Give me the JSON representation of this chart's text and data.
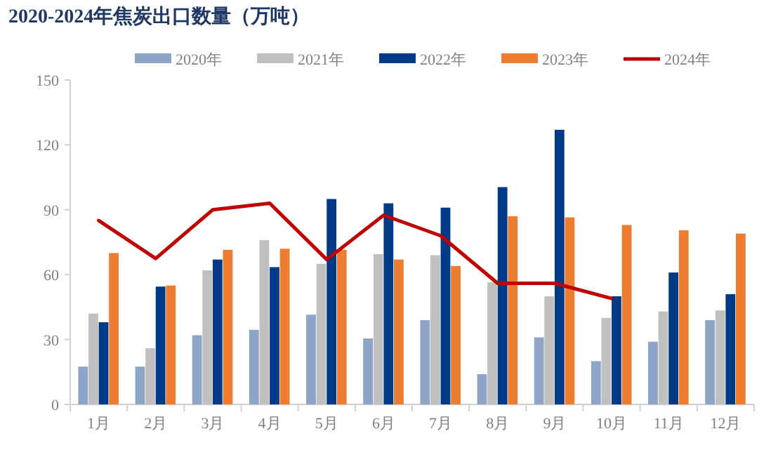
{
  "chart_data": {
    "type": "bar",
    "title": "2020-2024年焦炭出口数量（万吨）",
    "categories": [
      "1月",
      "2月",
      "3月",
      "4月",
      "5月",
      "6月",
      "7月",
      "8月",
      "9月",
      "10月",
      "11月",
      "12月"
    ],
    "series": [
      {
        "name": "2020年",
        "color": "#8ea5c8",
        "values": [
          17.5,
          17.5,
          32,
          34.5,
          41.5,
          30.5,
          39,
          14,
          31,
          20,
          29,
          39
        ]
      },
      {
        "name": "2021年",
        "color": "#c0c0c0",
        "values": [
          42,
          26,
          62,
          76,
          65,
          69.5,
          69,
          56.5,
          50,
          40,
          43,
          43.5
        ]
      },
      {
        "name": "2022年",
        "color": "#003a86",
        "values": [
          38,
          54.5,
          67,
          63.5,
          95,
          93,
          91,
          100.5,
          127,
          50,
          61,
          51
        ]
      },
      {
        "name": "2023年",
        "color": "#ed7d31",
        "values": [
          70,
          55,
          71.5,
          72,
          71.5,
          67,
          64,
          87,
          86.5,
          83,
          80.5,
          79
        ]
      },
      {
        "name": "2024年",
        "color": "#c00000",
        "type": "line",
        "values": [
          85,
          67.5,
          90,
          93,
          67,
          87.5,
          78,
          56,
          56,
          49,
          null,
          null
        ]
      }
    ],
    "ylim": [
      0,
      150
    ],
    "yticks": [
      0,
      30,
      60,
      90,
      120,
      150
    ],
    "legend": "top"
  }
}
